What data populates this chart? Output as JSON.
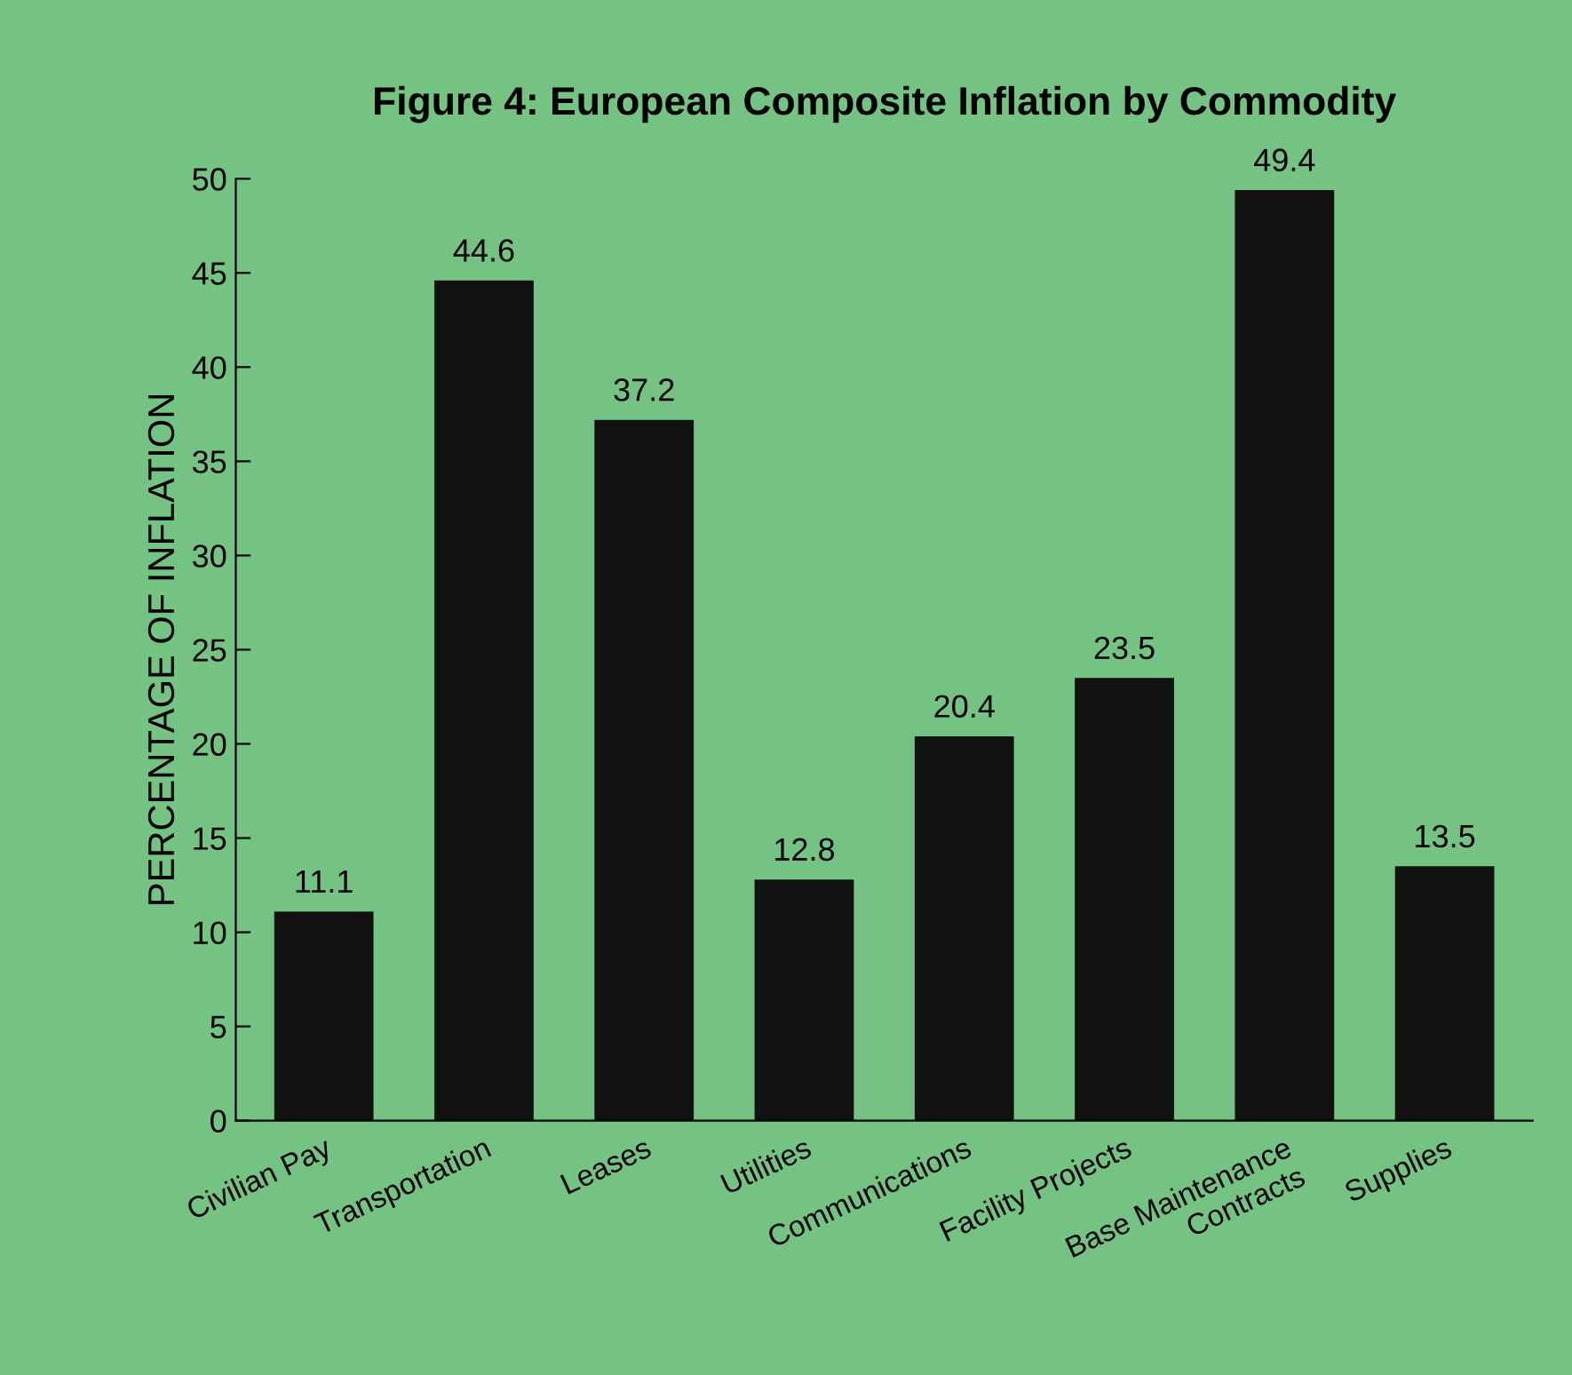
{
  "chart_data": {
    "type": "bar",
    "title": "Figure 4: European Composite Inflation by Commodity",
    "ylabel": "PERCENTAGE OF INFLATION",
    "categories": [
      "Civilian Pay",
      "Transportation",
      "Leases",
      "Utilities",
      "Communications",
      "Facility Projects",
      "Base Maintenance\nContracts",
      "Supplies"
    ],
    "values": [
      11.1,
      44.6,
      37.2,
      12.8,
      20.4,
      23.5,
      49.4,
      13.5
    ],
    "color": "#111111",
    "data_labels": true,
    "ylim": [
      0,
      50
    ],
    "yticks": [
      0,
      5,
      10,
      15,
      20,
      25,
      30,
      35,
      40,
      45,
      50
    ],
    "grid": false,
    "legend": false
  }
}
